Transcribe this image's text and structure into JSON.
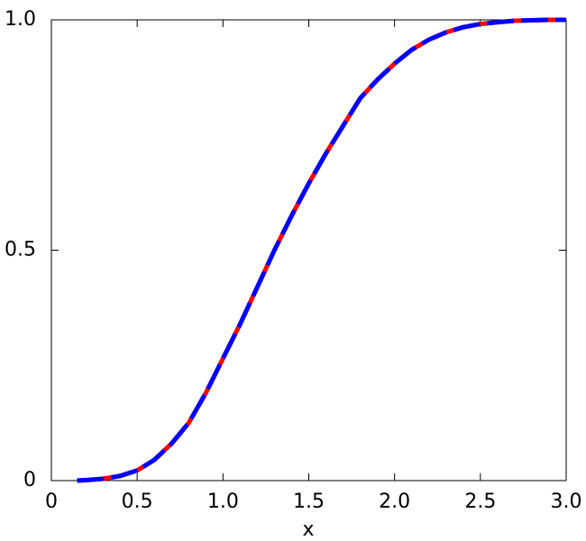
{
  "chart_data": {
    "type": "line",
    "x_label": "x",
    "x": [
      0.15,
      0.2,
      0.3,
      0.4,
      0.5,
      0.6,
      0.7,
      0.8,
      0.9,
      1.0,
      1.1,
      1.2,
      1.3,
      1.4,
      1.5,
      1.6,
      1.7,
      1.8,
      1.9,
      2.0,
      2.1,
      2.2,
      2.3,
      2.4,
      2.5,
      2.6,
      2.7,
      2.8,
      2.9,
      3.0
    ],
    "series": [
      {
        "color": "#ff0000",
        "dashed": false,
        "values": [
          0,
          0.001,
          0.004,
          0.01,
          0.022,
          0.045,
          0.08,
          0.125,
          0.19,
          0.265,
          0.34,
          0.42,
          0.5,
          0.575,
          0.645,
          0.71,
          0.77,
          0.83,
          0.87,
          0.905,
          0.935,
          0.957,
          0.973,
          0.984,
          0.991,
          0.995,
          0.998,
          0.999,
          1.0,
          1.0
        ]
      },
      {
        "color": "#0000ff",
        "dashed": true,
        "values": [
          0,
          0.001,
          0.004,
          0.01,
          0.022,
          0.045,
          0.08,
          0.125,
          0.19,
          0.265,
          0.34,
          0.42,
          0.5,
          0.575,
          0.645,
          0.71,
          0.77,
          0.83,
          0.87,
          0.905,
          0.935,
          0.957,
          0.973,
          0.984,
          0.991,
          0.995,
          0.998,
          0.999,
          1.0,
          1.0
        ]
      }
    ],
    "xlim": [
      0,
      3
    ],
    "ylim": [
      0,
      1
    ],
    "xticks": [
      0,
      0.5,
      {
        "value": 1,
        "label": "1.0"
      },
      1.5,
      {
        "value": 2,
        "label": "2.0"
      },
      2.5,
      {
        "value": 3,
        "label": "3.0"
      }
    ],
    "yticks": [
      0,
      0.5,
      {
        "value": 1,
        "label": "1.0"
      }
    ]
  }
}
